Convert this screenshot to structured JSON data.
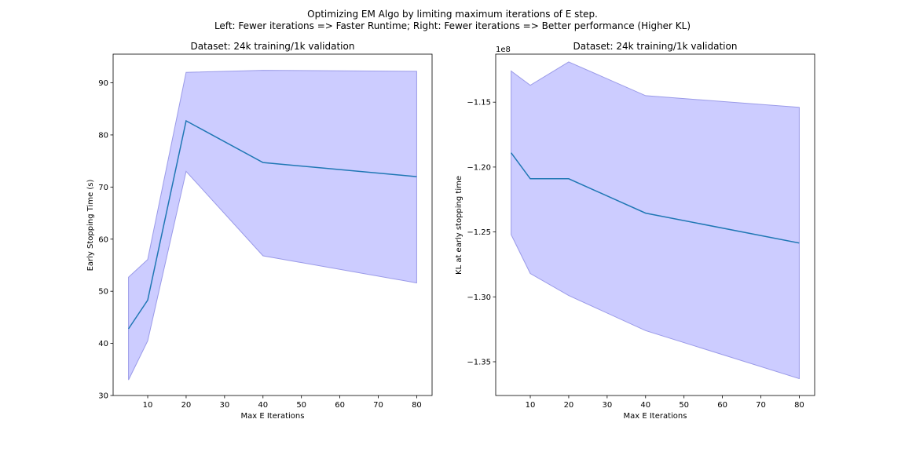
{
  "figure": {
    "suptitle_line1": "Optimizing EM Algo by limiting maximum iterations of E step.",
    "suptitle_line2": "Left: Fewer iterations => Faster Runtime; Right: Fewer iterations => Better performance (Higher KL)"
  },
  "colors": {
    "band_fill": "#ccccff",
    "band_edge": "#9a9ae8",
    "line": "#1f77b4"
  },
  "chart_data": [
    {
      "type": "line",
      "title": "Dataset: 24k training/1k validation",
      "xlabel": "Max E Iterations",
      "ylabel": "Early Stopping Time (s)",
      "x": [
        5,
        10,
        20,
        40,
        80
      ],
      "series": [
        {
          "name": "",
          "values": [
            42.8,
            48.3,
            82.7,
            74.7,
            72.0
          ]
        }
      ],
      "band_lower": [
        33.0,
        40.5,
        73.0,
        56.8,
        51.6
      ],
      "band_upper": [
        52.7,
        56.1,
        92.0,
        92.4,
        92.2
      ],
      "xlim": [
        1,
        84
      ],
      "ylim": [
        30,
        95.5
      ],
      "xticks": [
        10,
        20,
        30,
        40,
        50,
        60,
        70,
        80
      ],
      "yticks": [
        30,
        40,
        50,
        60,
        70,
        80,
        90
      ],
      "ytick_labels": [
        "30",
        "40",
        "50",
        "60",
        "70",
        "80",
        "90"
      ],
      "offset_text": "",
      "grid": false,
      "legend": "none"
    },
    {
      "type": "line",
      "title": "Dataset: 24k training/1k validation",
      "xlabel": "Max E Iterations",
      "ylabel": "KL at early stopping time",
      "x": [
        5,
        10,
        20,
        40,
        80
      ],
      "series": [
        {
          "name": "",
          "values": [
            -118900000,
            -120900000,
            -120900000,
            -123550000,
            -125850000
          ]
        }
      ],
      "band_lower": [
        -125200000,
        -128200000,
        -129900000,
        -132600000,
        -136300000
      ],
      "band_upper": [
        -112600000,
        -113700000,
        -111900000,
        -114500000,
        -115400000
      ],
      "xlim": [
        1,
        84
      ],
      "ylim": [
        -137600000,
        -111300000
      ],
      "xticks": [
        10,
        20,
        30,
        40,
        50,
        60,
        70,
        80
      ],
      "yticks": [
        -115000000,
        -120000000,
        -125000000,
        -130000000,
        -135000000
      ],
      "ytick_labels": [
        "−1.15",
        "−1.20",
        "−1.25",
        "−1.30",
        "−1.35"
      ],
      "offset_text": "1e8",
      "grid": false,
      "legend": "none"
    }
  ]
}
